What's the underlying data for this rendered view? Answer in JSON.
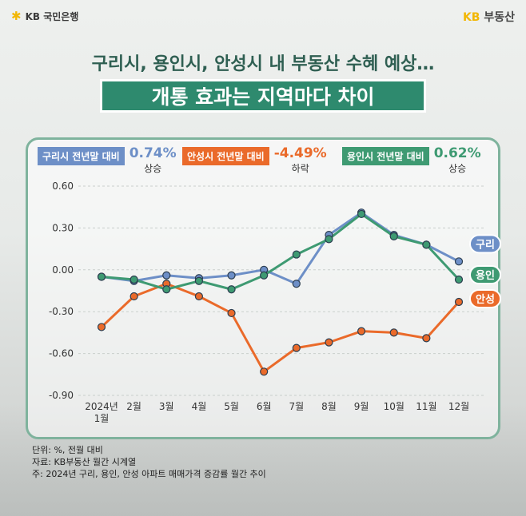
{
  "brand": {
    "bank": "KB 국민은행",
    "realty_kb": "KB",
    "realty_name": "부동산"
  },
  "title": {
    "line1": "구리시, 용인시, 안성시 내 부동산 수혜 예상…",
    "line2": "개통 효과는 지역마다 차이"
  },
  "legend": [
    {
      "label": "구리시 전년말 대비",
      "value": "0.74%",
      "direction": "상승",
      "color": "#6d8fc7"
    },
    {
      "label": "안성시 전년말 대비",
      "value": "-4.49%",
      "direction": "하락",
      "color": "#ea6a2a"
    },
    {
      "label": "용인시 전년말 대비",
      "value": "0.62%",
      "direction": "상승",
      "color": "#3e9a72"
    }
  ],
  "chart_data": {
    "type": "line",
    "title": "",
    "xlabel": "",
    "ylabel": "",
    "ylim": [
      -0.9,
      0.6
    ],
    "yticks": [
      "0.60",
      "0.30",
      "0.00",
      "-0.30",
      "-0.60",
      "-0.90"
    ],
    "ytick_values": [
      0.6,
      0.3,
      0.0,
      -0.3,
      -0.6,
      -0.9
    ],
    "categories": [
      "2024년\n1월",
      "2월",
      "3월",
      "4월",
      "5월",
      "6월",
      "7월",
      "8월",
      "9월",
      "10월",
      "11월",
      "12월"
    ],
    "series": [
      {
        "name": "구리",
        "color": "#6d8fc7",
        "values": [
          -0.05,
          -0.08,
          -0.04,
          -0.06,
          -0.04,
          0.0,
          -0.1,
          0.25,
          0.41,
          0.25,
          0.18,
          0.06
        ]
      },
      {
        "name": "용인",
        "color": "#3e9a72",
        "values": [
          -0.05,
          -0.07,
          -0.14,
          -0.08,
          -0.14,
          -0.04,
          0.11,
          0.22,
          0.4,
          0.24,
          0.18,
          -0.07
        ]
      },
      {
        "name": "안성",
        "color": "#ea6a2a",
        "values": [
          -0.41,
          -0.19,
          -0.1,
          -0.19,
          -0.31,
          -0.73,
          -0.56,
          -0.52,
          -0.44,
          -0.45,
          -0.49,
          -0.23
        ]
      }
    ]
  },
  "notes": [
    "단위: %, 전월 대비",
    "자료: KB부동산 월간 시계열",
    "주: 2024년 구리, 용인, 안성 아파트 매매가격 증감률 월간 추이"
  ]
}
